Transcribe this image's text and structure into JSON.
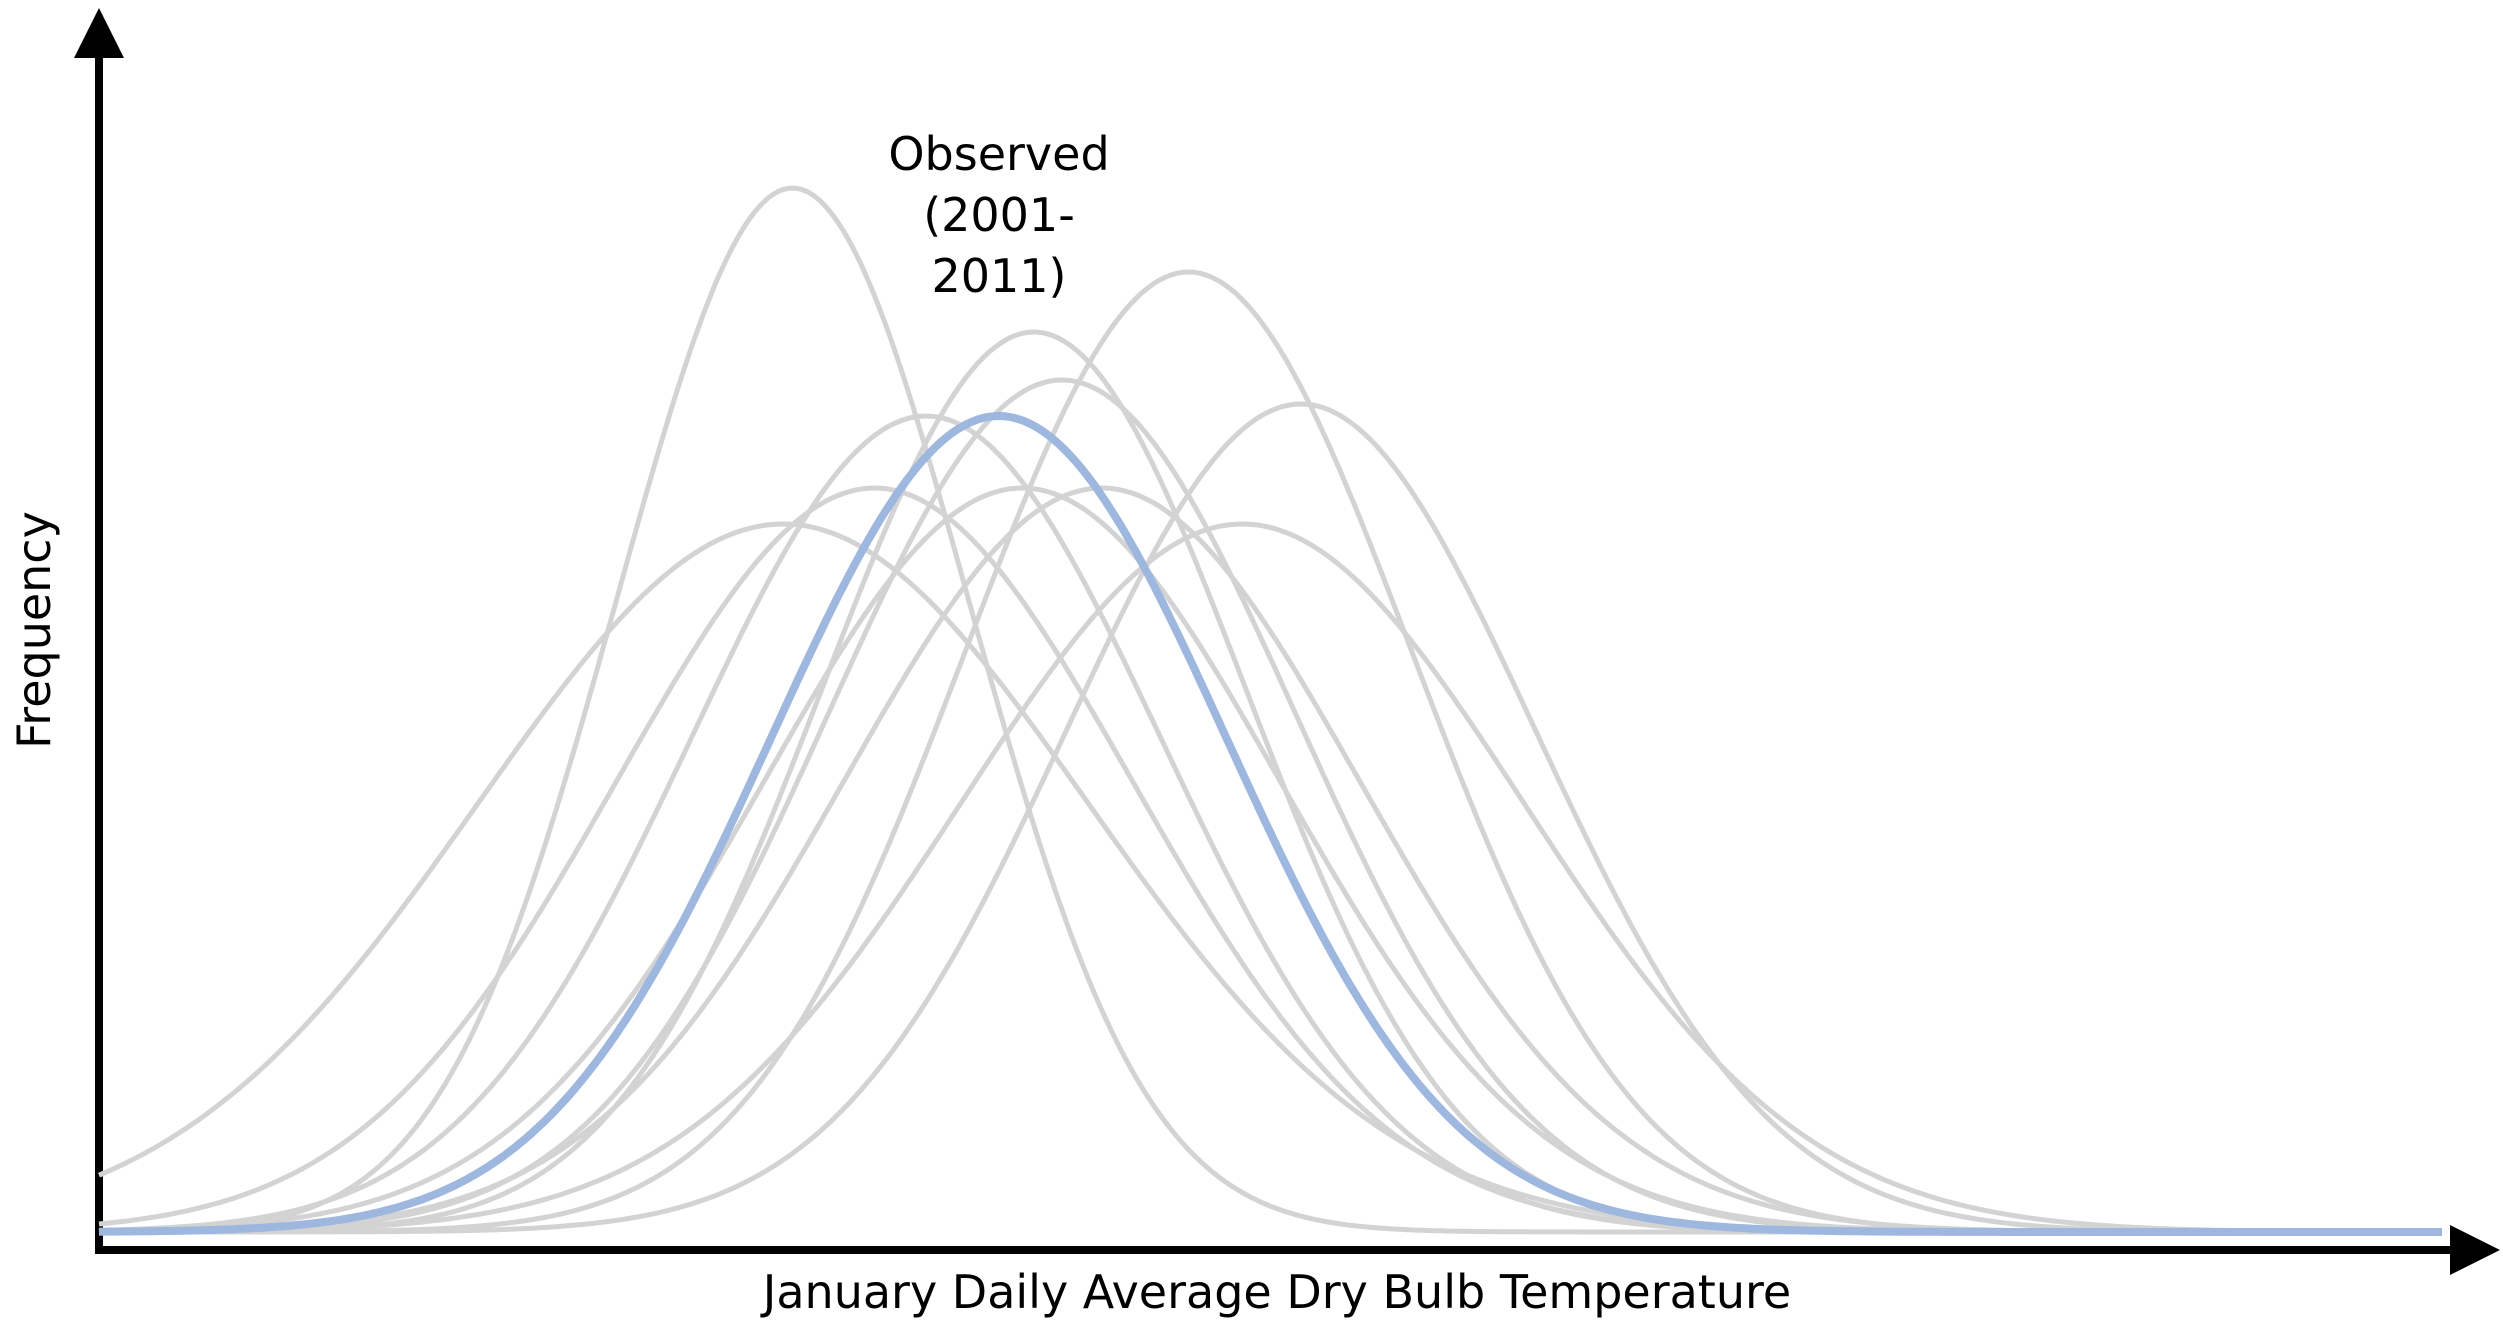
{
  "chart_data": {
    "type": "gaussian",
    "xlabel": "January Daily Average Dry Bulb Temperature",
    "ylabel": "Frequency",
    "annotation": [
      "Observed",
      "(2001-",
      "2011)"
    ],
    "xlim": [
      0,
      100
    ],
    "ylim": [
      0,
      100
    ],
    "series": [
      {
        "color": "#d3d3d3",
        "mean": 29.6,
        "sd": 7.5,
        "peak": 87
      },
      {
        "color": "#d3d3d3",
        "mean": 29.2,
        "sd": 13,
        "peak": 59
      },
      {
        "color": "#d3d3d3",
        "mean": 33.1,
        "sd": 11,
        "peak": 62
      },
      {
        "color": "#d3d3d3",
        "mean": 35.3,
        "sd": 10,
        "peak": 68
      },
      {
        "color": "#d3d3d3",
        "mean": 39.9,
        "sd": 9,
        "peak": 75
      },
      {
        "color": "#d3d3d3",
        "mean": 39.4,
        "sd": 11,
        "peak": 62
      },
      {
        "color": "#d3d3d3",
        "mean": 41.1,
        "sd": 10,
        "peak": 71
      },
      {
        "color": "#d3d3d3",
        "mean": 42.8,
        "sd": 11,
        "peak": 62
      },
      {
        "color": "#d3d3d3",
        "mean": 46.5,
        "sd": 9.5,
        "peak": 80
      },
      {
        "color": "#d3d3d3",
        "mean": 51.3,
        "sd": 10,
        "peak": 69
      },
      {
        "color": "#d3d3d3",
        "mean": 48.8,
        "sd": 12,
        "peak": 59
      },
      {
        "color": "#9db7df",
        "mean": 38.4,
        "sd": 9.7,
        "peak": 68
      }
    ]
  }
}
